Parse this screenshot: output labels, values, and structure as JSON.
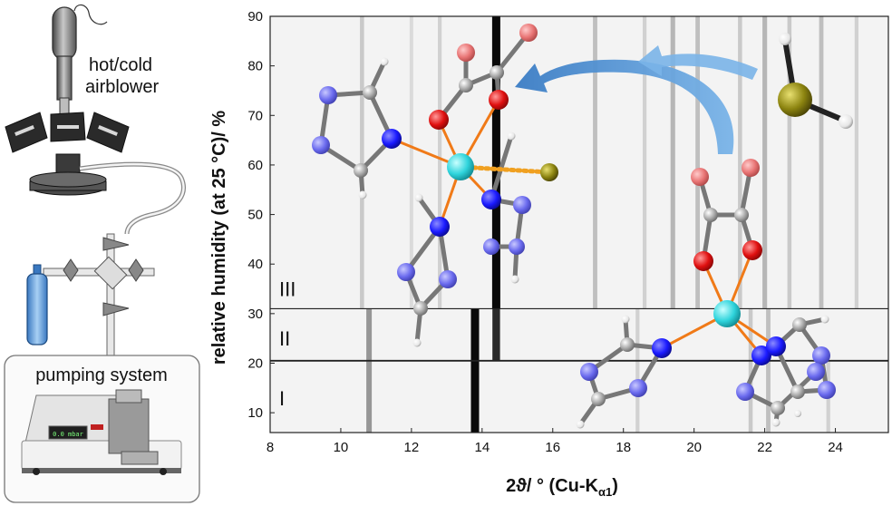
{
  "apparatus": {
    "blower_label_line1": "hot/cold",
    "blower_label_line2": "airblower",
    "pump_label": "pumping system",
    "pump_display": "0.0 mbar"
  },
  "chart_data": {
    "type": "heatmap",
    "title": "",
    "xlabel": "2ϑ/ ° (Cu-K",
    "xlabel_sub": "α1",
    "xlabel_close": ")",
    "ylabel": "relative humidity (at 25 °C)/ %",
    "xlim": [
      8,
      25.5
    ],
    "ylim": [
      6,
      90
    ],
    "xticks": [
      "8",
      "10",
      "12",
      "14",
      "16",
      "18",
      "20",
      "22",
      "24"
    ],
    "yticks": [
      "10",
      "20",
      "30",
      "40",
      "50",
      "60",
      "70",
      "80",
      "90"
    ],
    "phase_boundaries": [
      20.5,
      31
    ],
    "regions": [
      {
        "label": "I",
        "y": 13
      },
      {
        "label": "II",
        "y": 25
      },
      {
        "label": "III",
        "y": 35
      }
    ],
    "reflections": [
      {
        "phase": "I",
        "x": 10.8,
        "intensity": 0.5
      },
      {
        "phase": "I",
        "x": 13.8,
        "intensity": 1.0
      },
      {
        "phase": "I",
        "x": 18.4,
        "intensity": 0.2
      },
      {
        "phase": "I",
        "x": 21.6,
        "intensity": 0.25
      },
      {
        "phase": "I",
        "x": 22.1,
        "intensity": 0.3
      },
      {
        "phase": "I",
        "x": 23.8,
        "intensity": 0.2
      },
      {
        "phase": "II",
        "x": 10.8,
        "intensity": 0.5
      },
      {
        "phase": "II",
        "x": 13.8,
        "intensity": 1.0
      },
      {
        "phase": "II",
        "x": 14.4,
        "intensity": 0.9
      },
      {
        "phase": "II",
        "x": 18.4,
        "intensity": 0.2
      },
      {
        "phase": "II",
        "x": 21.6,
        "intensity": 0.25
      },
      {
        "phase": "II",
        "x": 22.1,
        "intensity": 0.3
      },
      {
        "phase": "III",
        "x": 10.6,
        "intensity": 0.25
      },
      {
        "phase": "III",
        "x": 12.0,
        "intensity": 0.15
      },
      {
        "phase": "III",
        "x": 12.8,
        "intensity": 0.2
      },
      {
        "phase": "III",
        "x": 14.4,
        "intensity": 1.0
      },
      {
        "phase": "III",
        "x": 17.2,
        "intensity": 0.3
      },
      {
        "phase": "III",
        "x": 18.6,
        "intensity": 0.2
      },
      {
        "phase": "III",
        "x": 19.4,
        "intensity": 0.35
      },
      {
        "phase": "III",
        "x": 20.1,
        "intensity": 0.3
      },
      {
        "phase": "III",
        "x": 21.3,
        "intensity": 0.25
      },
      {
        "phase": "III",
        "x": 22.0,
        "intensity": 0.35
      },
      {
        "phase": "III",
        "x": 22.7,
        "intensity": 0.25
      },
      {
        "phase": "III",
        "x": 23.6,
        "intensity": 0.3
      },
      {
        "phase": "III",
        "x": 24.6,
        "intensity": 0.2
      }
    ]
  },
  "colors": {
    "metal": "#2fd4dc",
    "nitrogen": "#1a1aff",
    "nitrogen_far": "#6a6aee",
    "oxygen": "#e01010",
    "oxygen_far": "#e87474",
    "carbon": "#a8a8a8",
    "hydrogen": "#f2f2f2",
    "sulfur": "#8c8410",
    "bond": "#f07a18",
    "arrow": "#4a8fd0"
  }
}
